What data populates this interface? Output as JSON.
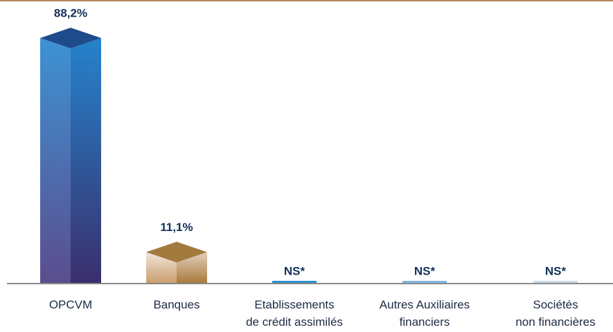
{
  "chart_data": {
    "type": "bar3d",
    "categories": [
      [
        "OPCVM"
      ],
      [
        "Banques"
      ],
      [
        "Etablissements",
        "de crédit assimilés"
      ],
      [
        "Autres Auxiliaires",
        "financiers"
      ],
      [
        "Sociétés",
        "non financières"
      ]
    ],
    "values": [
      88.2,
      11.1,
      null,
      null,
      null
    ],
    "value_labels": [
      "88,2%",
      "11,1%",
      "NS*",
      "NS*",
      "NS*"
    ],
    "colors": [
      "#2f7fc8",
      "#b98a4e",
      "#2a8fd0",
      "#7fb8e0",
      "#c8dcea"
    ]
  }
}
